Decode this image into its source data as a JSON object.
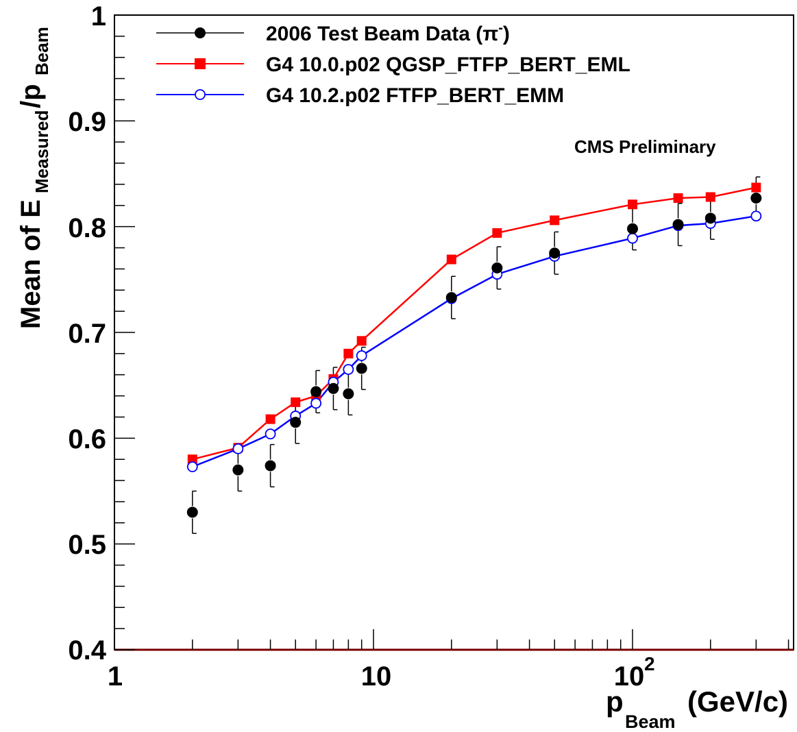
{
  "chart_data": {
    "type": "scatter",
    "x_scale": "log",
    "xlim": [
      1,
      400
    ],
    "ylim": [
      0.4,
      1.0
    ],
    "grid": false,
    "legend_position": "top-left",
    "axis_labels": {
      "y_main": "Mean of E",
      "y_sub1": "Measured",
      "y_mid": "/p",
      "y_sub2": "Beam",
      "x_main": "p",
      "x_sub": "Beam",
      "x_unit": "(GeV/c)"
    },
    "x_tick_labels": [
      "1",
      "10",
      "10",
      "2"
    ],
    "y_tick_labels": [
      "0.4",
      "0.5",
      "0.6",
      "0.7",
      "0.8",
      "0.9",
      "1"
    ],
    "annotation": "CMS Preliminary",
    "series": [
      {
        "name": "2006 Test Beam Data (π⁻)",
        "legend_main": "2006 Test Beam Data (π",
        "legend_sup": "-",
        "legend_end": ")",
        "color": "#000000",
        "marker": "filled-circle",
        "connected": false,
        "x": [
          2,
          3,
          4,
          5,
          6,
          7,
          8,
          9,
          20,
          30,
          50,
          100,
          150,
          200,
          300
        ],
        "y": [
          0.53,
          0.57,
          0.574,
          0.615,
          0.644,
          0.647,
          0.642,
          0.666,
          0.733,
          0.761,
          0.775,
          0.798,
          0.802,
          0.808,
          0.827
        ],
        "err": [
          0.02,
          0.02,
          0.02,
          0.02,
          0.02,
          0.02,
          0.02,
          0.02,
          0.02,
          0.02,
          0.02,
          0.02,
          0.02,
          0.02,
          0.02
        ]
      },
      {
        "name": "G4 10.0.p02 QGSP_FTFP_BERT_EML",
        "color": "#ff0000",
        "marker": "filled-square",
        "connected": true,
        "x": [
          2,
          3,
          4,
          5,
          6,
          7,
          8,
          9,
          20,
          30,
          50,
          100,
          150,
          200,
          300
        ],
        "y": [
          0.58,
          0.591,
          0.618,
          0.634,
          0.64,
          0.656,
          0.68,
          0.692,
          0.769,
          0.794,
          0.806,
          0.821,
          0.827,
          0.828,
          0.837
        ]
      },
      {
        "name": "G4 10.2.p02 FTFP_BERT_EMM",
        "color": "#0000ff",
        "marker": "open-circle",
        "connected": true,
        "x": [
          2,
          3,
          4,
          5,
          6,
          7,
          8,
          9,
          20,
          30,
          50,
          100,
          150,
          200,
          300
        ],
        "y": [
          0.573,
          0.59,
          0.604,
          0.621,
          0.633,
          0.653,
          0.665,
          0.678,
          0.732,
          0.755,
          0.772,
          0.789,
          0.801,
          0.803,
          0.81
        ]
      }
    ]
  }
}
